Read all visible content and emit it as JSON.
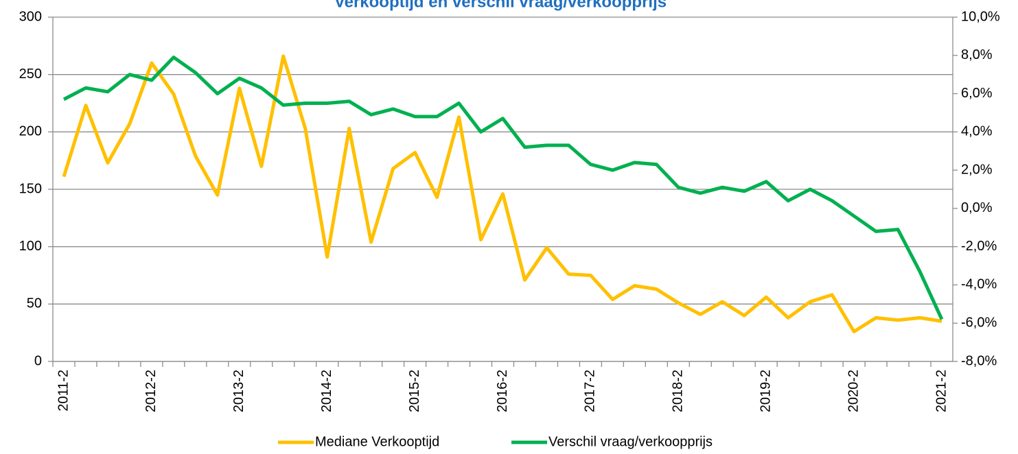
{
  "chart_data": {
    "type": "line",
    "title": "Verkooptijd en verschil vraag/verkoopprijs",
    "categories": [
      "2011-2",
      null,
      null,
      null,
      "2012-2",
      null,
      null,
      null,
      "2013-2",
      null,
      null,
      null,
      "2014-2",
      null,
      null,
      null,
      "2015-2",
      null,
      null,
      null,
      "2016-2",
      null,
      null,
      null,
      "2017-2",
      null,
      null,
      null,
      "2018-2",
      null,
      null,
      null,
      "2019-2",
      null,
      null,
      null,
      "2020-2",
      null,
      null,
      null,
      "2021-2"
    ],
    "series": [
      {
        "name": "Mediane Verkooptijd",
        "color": "#FFC000",
        "values": [
          161,
          223,
          173,
          207,
          260,
          233,
          179,
          145,
          238,
          170,
          266,
          203,
          91,
          203,
          104,
          168,
          182,
          143,
          213,
          106,
          146,
          71,
          99,
          76,
          75,
          54,
          66,
          63,
          51,
          41,
          52,
          40,
          56,
          38,
          52,
          58,
          26,
          38,
          36,
          38,
          35
        ]
      },
      {
        "name": "Verschil vraag/verkoopprijs",
        "color": "#00B050",
        "axis": "y2",
        "values": [
          5.7,
          6.3,
          6.1,
          7.0,
          6.7,
          7.9,
          7.1,
          6.0,
          6.8,
          6.3,
          5.4,
          5.5,
          5.5,
          5.6,
          4.9,
          5.2,
          4.8,
          4.8,
          5.5,
          4.0,
          4.7,
          3.2,
          3.3,
          3.3,
          2.3,
          2.0,
          2.4,
          2.3,
          1.1,
          0.8,
          1.1,
          0.9,
          1.4,
          0.4,
          1.0,
          0.4,
          -0.4,
          -1.2,
          -1.1,
          -3.3,
          -5.8
        ]
      }
    ],
    "ylim": [
      0,
      300
    ],
    "yticks": [
      0,
      50,
      100,
      150,
      200,
      250,
      300
    ],
    "y2lim": [
      -8,
      10
    ],
    "y2ticks": [
      {
        "value": -8,
        "label": "-8,0%"
      },
      {
        "value": -6,
        "label": "-6,0%"
      },
      {
        "value": -4,
        "label": "-4,0%"
      },
      {
        "value": -2,
        "label": "-2,0%"
      },
      {
        "value": 0,
        "label": "0,0%"
      },
      {
        "value": 2,
        "label": "2,0%"
      },
      {
        "value": 4,
        "label": "4,0%"
      },
      {
        "value": 6,
        "label": "6,0%"
      },
      {
        "value": 8,
        "label": "8,0%"
      },
      {
        "value": 10,
        "label": "10,0%"
      }
    ],
    "grid": true,
    "legend": "bottom"
  }
}
